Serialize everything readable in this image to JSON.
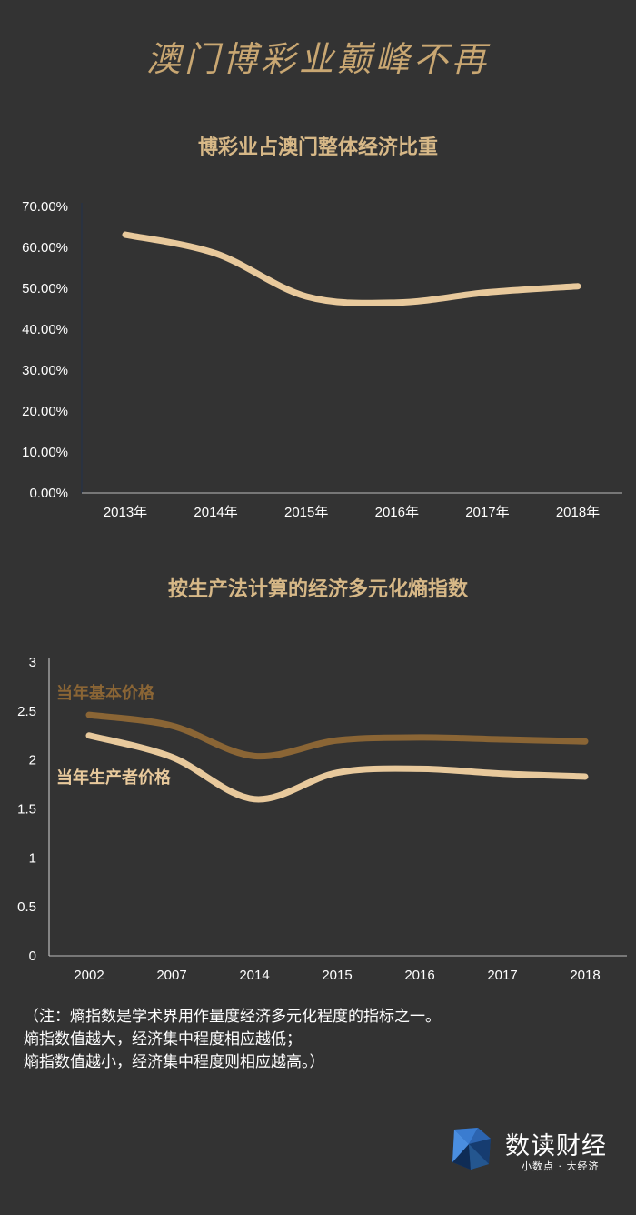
{
  "page": {
    "title": "澳门博彩业巅峰不再",
    "note_lines": [
      "（注：熵指数是学术界用作量度经济多元化程度的指标之一。",
      "熵指数值越大，经济集中程度相应越低；",
      "熵指数值越小，经济集中程度则相应越高。）"
    ],
    "brand": {
      "name": "数读财经",
      "tagline": "小数点 · 大经济"
    }
  },
  "chart_data": [
    {
      "type": "line",
      "title": "博彩业占澳门整体经济比重",
      "categories": [
        "2013年",
        "2014年",
        "2015年",
        "2016年",
        "2017年",
        "2018年"
      ],
      "y_ticks": [
        "0.00%",
        "10.00%",
        "20.00%",
        "30.00%",
        "40.00%",
        "50.00%",
        "60.00%",
        "70.00%"
      ],
      "ylim": [
        0,
        70
      ],
      "series": [
        {
          "values": [
            63.1,
            58.5,
            48.0,
            46.5,
            49.0,
            50.5
          ],
          "color": "#e8c99c"
        }
      ],
      "grid": false
    },
    {
      "type": "line",
      "title": "按生产法计算的经济多元化熵指数",
      "categories": [
        "2002",
        "2007",
        "2014",
        "2015",
        "2016",
        "2017",
        "2018"
      ],
      "y_ticks": [
        "0",
        "0.5",
        "1",
        "1.5",
        "2",
        "2.5",
        "3"
      ],
      "ylim": [
        0,
        3
      ],
      "series": [
        {
          "name": "当年基本价格",
          "values": [
            2.46,
            2.35,
            2.04,
            2.2,
            2.23,
            2.21,
            2.19
          ],
          "color": "#8a6535"
        },
        {
          "name": "当年生产者价格",
          "values": [
            2.25,
            2.03,
            1.6,
            1.87,
            1.91,
            1.86,
            1.83
          ],
          "color": "#e8c99c"
        }
      ],
      "grid": false
    }
  ]
}
